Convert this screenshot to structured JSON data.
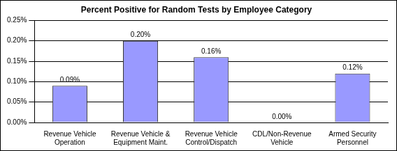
{
  "chart_data": {
    "type": "bar",
    "title": "Percent Positive for Random Tests by Employee Category",
    "categories": [
      "Revenue Vehicle Operation",
      "Revenue Vehicle & Equipment Maint.",
      "Revenue Vehicle Control/Dispatch",
      "CDL/Non-Revenue Vehicle",
      "Armed Security Personnel"
    ],
    "values": [
      0.09,
      0.2,
      0.16,
      0.0,
      0.12
    ],
    "value_labels": [
      "0.09%",
      "0.20%",
      "0.16%",
      "0.00%",
      "0.12%"
    ],
    "data_labels": true,
    "color": "#9999ff",
    "ylim": [
      0,
      0.25
    ],
    "yticks": [
      {
        "value": 0,
        "label": "0.00%"
      },
      {
        "value": 0.05,
        "label": "0.05%"
      },
      {
        "value": 0.1,
        "label": "0.10%"
      },
      {
        "value": 0.15,
        "label": "0.15%"
      },
      {
        "value": 0.2,
        "label": "0.20%"
      },
      {
        "value": 0.25,
        "label": "0.25%"
      }
    ],
    "grid": true
  }
}
